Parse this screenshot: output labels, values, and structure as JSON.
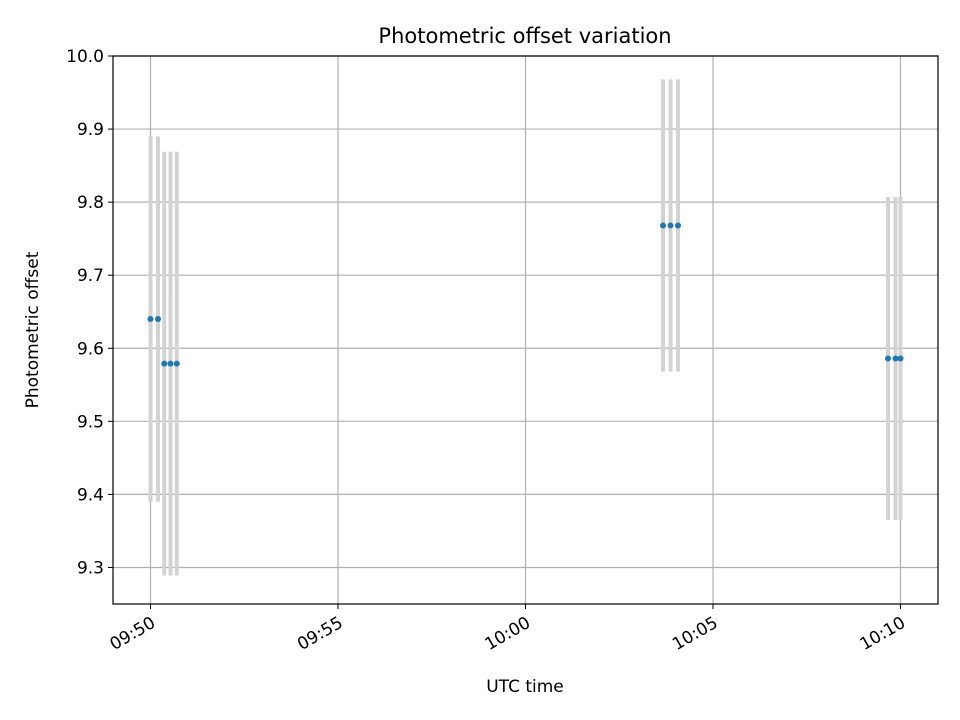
{
  "chart_data": {
    "type": "scatter",
    "title": "Photometric offset variation",
    "xlabel": "UTC time",
    "ylabel": "Photometric offset",
    "x_axis_type": "time",
    "xlim": [
      "09:49:00",
      "10:11:00"
    ],
    "ylim": [
      9.25,
      10.0
    ],
    "x_ticks": [
      "09:50",
      "09:55",
      "10:00",
      "10:05",
      "10:10"
    ],
    "y_ticks": [
      9.3,
      9.4,
      9.5,
      9.6,
      9.7,
      9.8,
      9.9,
      10.0
    ],
    "grid": true,
    "marker_color": "#1f77b4",
    "errorbar_color": "#d3d3d3",
    "series": [
      {
        "points": [
          {
            "x": "09:50:00",
            "y": 9.64,
            "yerr": 0.25
          },
          {
            "x": "09:50:12",
            "y": 9.64,
            "yerr": 0.25
          },
          {
            "x": "09:50:22",
            "y": 9.579,
            "yerr": 0.29
          },
          {
            "x": "09:50:32",
            "y": 9.579,
            "yerr": 0.29
          },
          {
            "x": "09:50:42",
            "y": 9.579,
            "yerr": 0.29
          },
          {
            "x": "10:03:40",
            "y": 9.768,
            "yerr": 0.2
          },
          {
            "x": "10:03:52",
            "y": 9.768,
            "yerr": 0.2
          },
          {
            "x": "10:04:04",
            "y": 9.768,
            "yerr": 0.2
          },
          {
            "x": "10:09:40",
            "y": 9.586,
            "yerr": 0.221
          },
          {
            "x": "10:09:52",
            "y": 9.586,
            "yerr": 0.221
          },
          {
            "x": "10:10:00",
            "y": 9.586,
            "yerr": 0.221
          }
        ]
      }
    ]
  }
}
